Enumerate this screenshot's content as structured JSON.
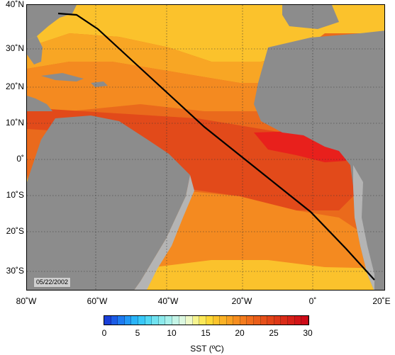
{
  "map": {
    "lat_labels": [
      "40˚N",
      "30˚N",
      "20˚N",
      "10˚N",
      "0˚",
      "10˚S",
      "20˚S",
      "30˚S"
    ],
    "lon_labels": [
      "80˚W",
      "60˚W",
      "40˚W",
      "20˚W",
      "0˚",
      "20˚E"
    ],
    "date": "05/22/2002",
    "colors": {
      "land": "#8c8c8c",
      "shelf": "#b4b4b4",
      "sst_30": "#e8201c",
      "sst_28": "#e24a1a",
      "sst_26": "#ea6a1c",
      "sst_24": "#f48a20",
      "sst_22": "#f8a624",
      "sst_20": "#fbc22c",
      "sst_18": "#fde040",
      "sst_15": "#f6f06a",
      "track": "#000000"
    }
  },
  "colorbar": {
    "title": "SST (ºC)",
    "ticks": [
      "0",
      "5",
      "10",
      "15",
      "20",
      "25",
      "30"
    ],
    "colors": [
      "#1a3fd8",
      "#1c5ce6",
      "#1e7af0",
      "#2298f6",
      "#2ab4f8",
      "#38c8f8",
      "#52d8f4",
      "#70e2f0",
      "#8ceaec",
      "#a8f0ea",
      "#c4f4e6",
      "#dcf8e0",
      "#eef9c8",
      "#f6f48e",
      "#fce858",
      "#fdd836",
      "#fcc42c",
      "#fbb226",
      "#f9a022",
      "#f78e20",
      "#f47c1e",
      "#f06c1c",
      "#ea5e1a",
      "#e6501a",
      "#e24418",
      "#de3818",
      "#da2c18",
      "#d62018",
      "#d21418",
      "#ce0a18"
    ]
  }
}
